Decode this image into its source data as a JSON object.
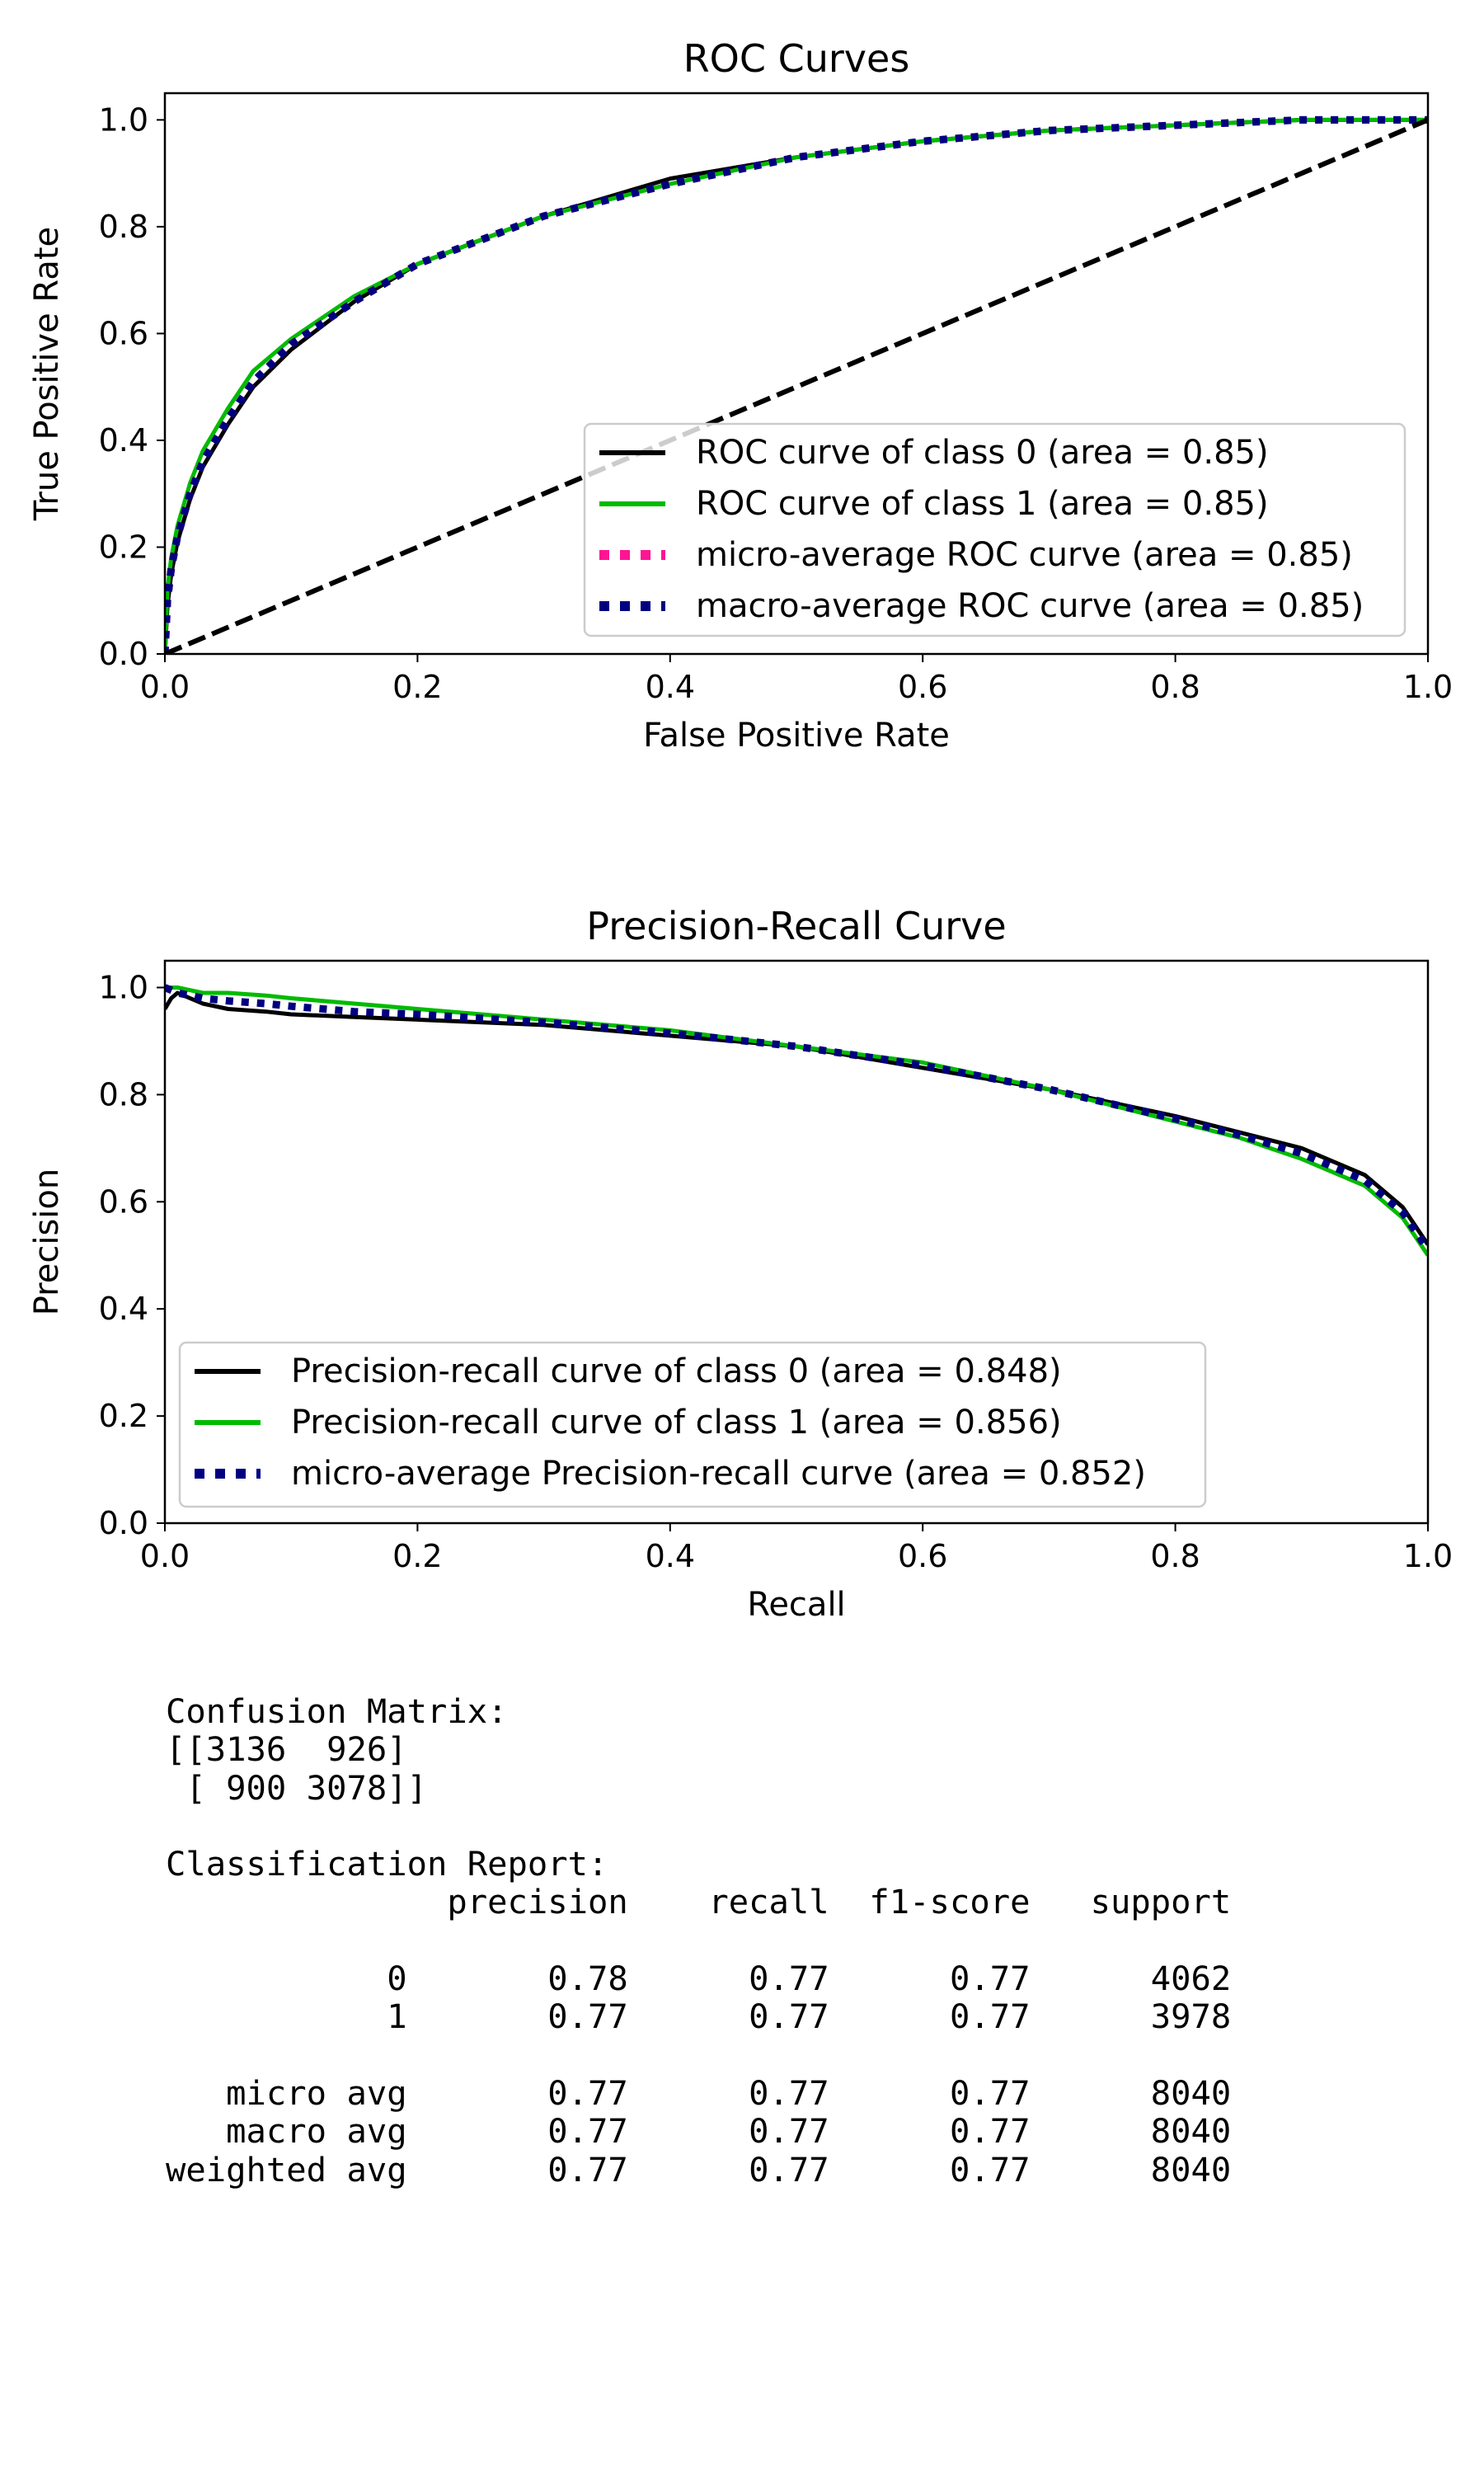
{
  "chart_data": [
    {
      "type": "line",
      "title": "ROC Curves",
      "xlabel": "False Positive Rate",
      "ylabel": "True Positive Rate",
      "xlim": [
        0,
        1
      ],
      "ylim": [
        0,
        1.05
      ],
      "x_ticks": [
        "0.0",
        "0.2",
        "0.4",
        "0.6",
        "0.8",
        "1.0"
      ],
      "y_ticks": [
        "0.0",
        "0.2",
        "0.4",
        "0.6",
        "0.8",
        "1.0"
      ],
      "grid": false,
      "legend_position": "lower-right",
      "series": [
        {
          "name": "ROC curve of class 0 (area = 0.85)",
          "color": "#000000",
          "style": "solid",
          "x": [
            0,
            0.002,
            0.005,
            0.01,
            0.02,
            0.03,
            0.05,
            0.07,
            0.1,
            0.15,
            0.2,
            0.3,
            0.4,
            0.5,
            0.6,
            0.7,
            0.8,
            0.9,
            1.0
          ],
          "y": [
            0,
            0.09,
            0.15,
            0.21,
            0.29,
            0.35,
            0.43,
            0.5,
            0.57,
            0.66,
            0.73,
            0.82,
            0.89,
            0.93,
            0.96,
            0.98,
            0.99,
            1.0,
            1.0
          ]
        },
        {
          "name": "ROC curve of class 1 (area = 0.85)",
          "color": "#00bb00",
          "style": "solid",
          "x": [
            0,
            0.002,
            0.005,
            0.01,
            0.02,
            0.03,
            0.05,
            0.07,
            0.1,
            0.15,
            0.2,
            0.3,
            0.4,
            0.5,
            0.6,
            0.7,
            0.8,
            0.9,
            1.0
          ],
          "y": [
            0,
            0.12,
            0.18,
            0.24,
            0.32,
            0.38,
            0.46,
            0.53,
            0.59,
            0.67,
            0.73,
            0.82,
            0.88,
            0.93,
            0.96,
            0.98,
            0.99,
            1.0,
            1.0
          ]
        },
        {
          "name": "micro-average ROC curve (area = 0.85)",
          "color": "#ff1493",
          "style": "dotted",
          "x": [
            0,
            0.002,
            0.005,
            0.01,
            0.02,
            0.03,
            0.05,
            0.07,
            0.1,
            0.15,
            0.2,
            0.3,
            0.4,
            0.5,
            0.6,
            0.7,
            0.8,
            0.9,
            1.0
          ],
          "y": [
            0,
            0.1,
            0.16,
            0.22,
            0.3,
            0.36,
            0.44,
            0.51,
            0.58,
            0.66,
            0.73,
            0.82,
            0.88,
            0.93,
            0.96,
            0.98,
            0.99,
            1.0,
            1.0
          ]
        },
        {
          "name": "macro-average ROC curve (area = 0.85)",
          "color": "#000080",
          "style": "dotted",
          "x": [
            0,
            0.002,
            0.005,
            0.01,
            0.02,
            0.03,
            0.05,
            0.07,
            0.1,
            0.15,
            0.2,
            0.3,
            0.4,
            0.5,
            0.6,
            0.7,
            0.8,
            0.9,
            1.0
          ],
          "y": [
            0,
            0.1,
            0.16,
            0.22,
            0.3,
            0.36,
            0.44,
            0.51,
            0.58,
            0.66,
            0.73,
            0.82,
            0.88,
            0.93,
            0.96,
            0.98,
            0.99,
            1.0,
            1.0
          ]
        },
        {
          "name": "",
          "color": "#000000",
          "style": "dashed",
          "x": [
            0,
            1
          ],
          "y": [
            0,
            1
          ]
        }
      ]
    },
    {
      "type": "line",
      "title": "Precision-Recall Curve",
      "xlabel": "Recall",
      "ylabel": "Precision",
      "xlim": [
        0,
        1
      ],
      "ylim": [
        0,
        1.05
      ],
      "x_ticks": [
        "0.0",
        "0.2",
        "0.4",
        "0.6",
        "0.8",
        "1.0"
      ],
      "y_ticks": [
        "0.0",
        "0.2",
        "0.4",
        "0.6",
        "0.8",
        "1.0"
      ],
      "grid": false,
      "legend_position": "lower-left",
      "series": [
        {
          "name": "Precision-recall curve of class 0 (area = 0.848)",
          "color": "#000000",
          "style": "solid",
          "x": [
            0.0,
            0.005,
            0.01,
            0.02,
            0.03,
            0.05,
            0.08,
            0.1,
            0.15,
            0.2,
            0.3,
            0.4,
            0.5,
            0.6,
            0.7,
            0.8,
            0.85,
            0.9,
            0.95,
            0.98,
            1.0
          ],
          "y": [
            0.96,
            0.98,
            0.99,
            0.98,
            0.97,
            0.96,
            0.955,
            0.95,
            0.945,
            0.94,
            0.93,
            0.91,
            0.89,
            0.85,
            0.81,
            0.76,
            0.73,
            0.7,
            0.65,
            0.59,
            0.52
          ]
        },
        {
          "name": "Precision-recall curve of class 1 (area = 0.856)",
          "color": "#00bb00",
          "style": "solid",
          "x": [
            0.0,
            0.005,
            0.01,
            0.02,
            0.03,
            0.05,
            0.08,
            0.1,
            0.15,
            0.2,
            0.3,
            0.4,
            0.5,
            0.6,
            0.7,
            0.8,
            0.85,
            0.9,
            0.95,
            0.98,
            1.0
          ],
          "y": [
            1.0,
            1.0,
            1.0,
            0.995,
            0.99,
            0.99,
            0.985,
            0.98,
            0.97,
            0.96,
            0.94,
            0.92,
            0.89,
            0.86,
            0.81,
            0.75,
            0.72,
            0.68,
            0.63,
            0.57,
            0.5
          ]
        },
        {
          "name": "micro-average Precision-recall curve (area = 0.852)",
          "color": "#000080",
          "style": "dotted",
          "x": [
            0.0,
            0.005,
            0.01,
            0.02,
            0.03,
            0.05,
            0.08,
            0.1,
            0.15,
            0.2,
            0.3,
            0.4,
            0.5,
            0.6,
            0.7,
            0.8,
            0.85,
            0.9,
            0.95,
            0.98,
            1.0
          ],
          "y": [
            1.0,
            0.995,
            0.99,
            0.985,
            0.98,
            0.975,
            0.97,
            0.965,
            0.955,
            0.95,
            0.935,
            0.915,
            0.89,
            0.855,
            0.81,
            0.755,
            0.725,
            0.69,
            0.64,
            0.58,
            0.51
          ]
        }
      ]
    }
  ],
  "report": {
    "text": "Confusion Matrix:\n[[3136  926]\n [ 900 3078]]\n\nClassification Report:\n              precision    recall  f1-score   support\n\n           0       0.78      0.77      0.77      4062\n           1       0.77      0.77      0.77      3978\n\n   micro avg       0.77      0.77      0.77      8040\n   macro avg       0.77      0.77      0.77      8040\nweighted avg       0.77      0.77      0.77      8040"
  }
}
